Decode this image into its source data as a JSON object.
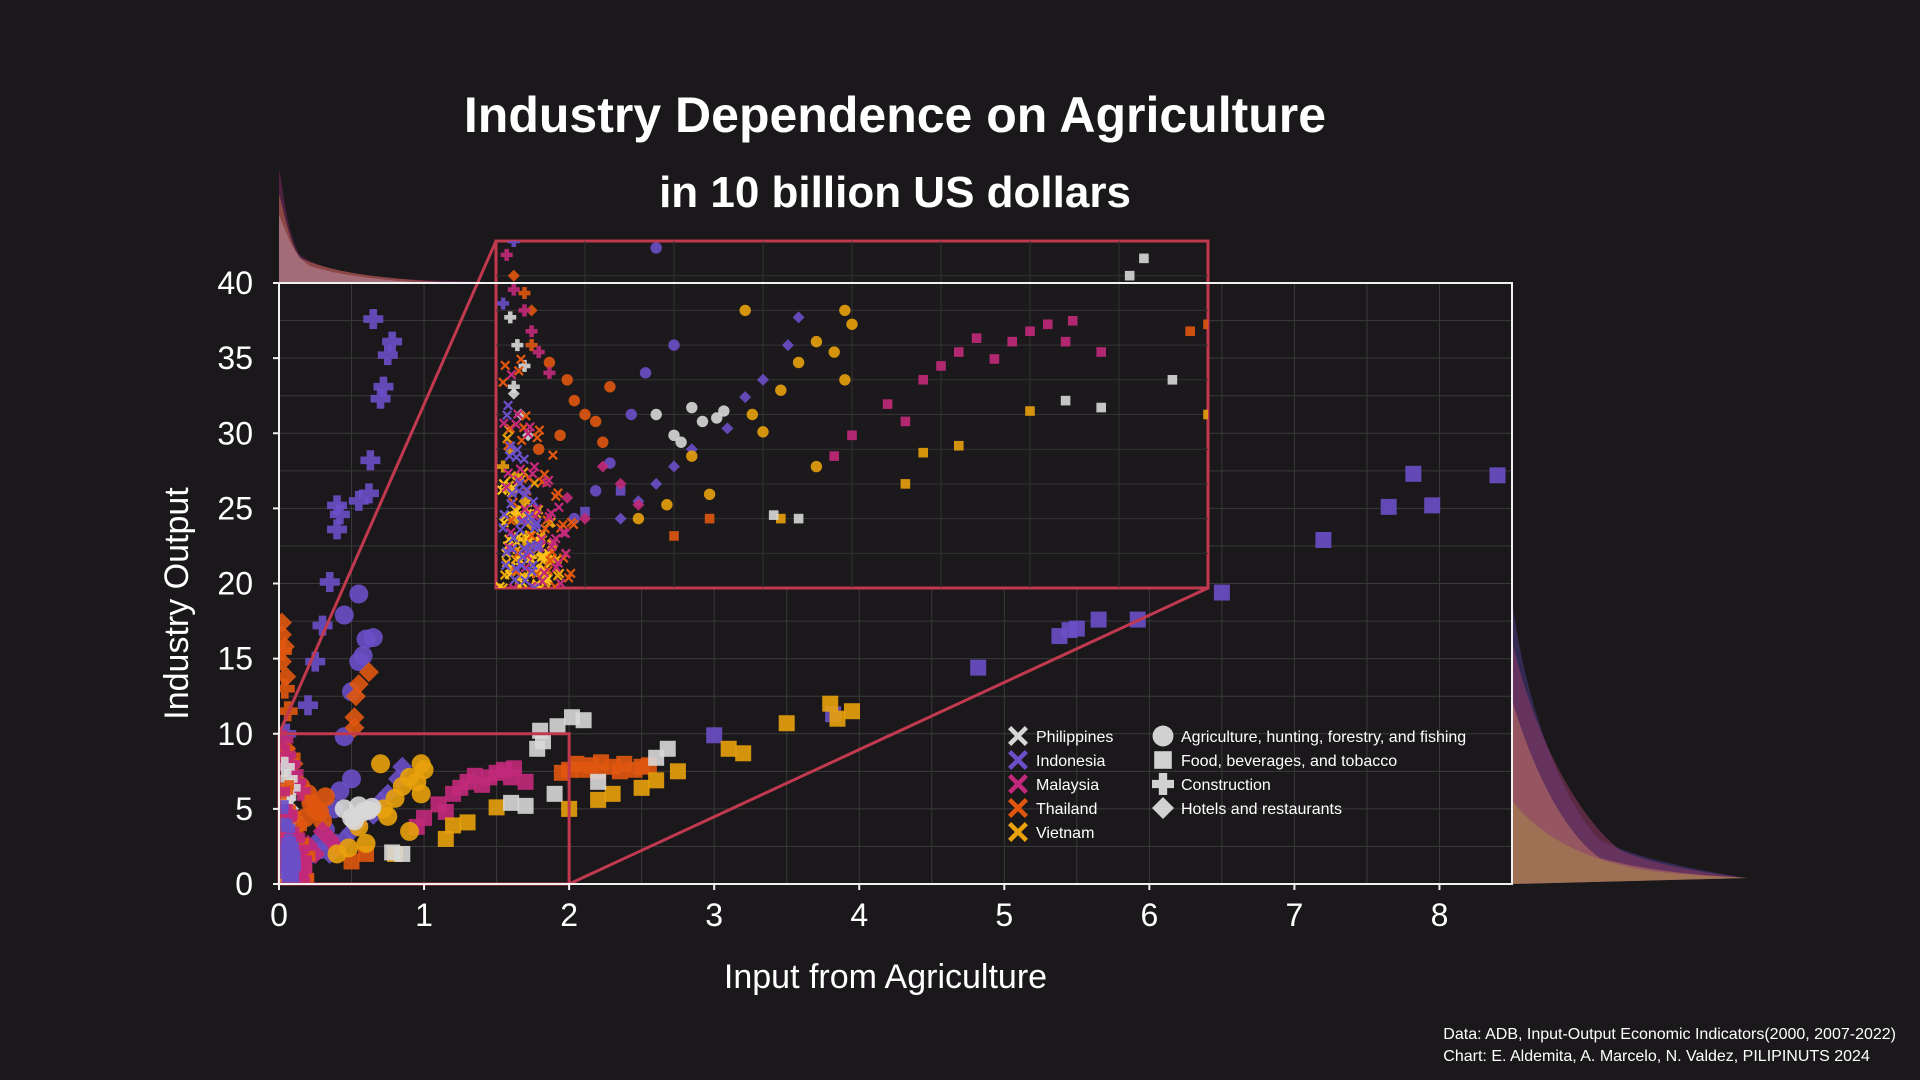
{
  "title": "Industry Dependence on Agriculture",
  "subtitle": "in 10 billion US dollars",
  "source": {
    "line1": "Data: ADB, Input-Output Economic Indicators(2000, 2007-2022)",
    "line2": "Chart: E. Aldemita, A. Marcelo, N. Valdez, PILIPINUTS 2024"
  },
  "chart_data": {
    "type": "scatter",
    "xlabel": "Input from Agriculture",
    "ylabel": "Industry Output",
    "xlim": [
      0,
      8.5
    ],
    "ylim": [
      0,
      40
    ],
    "x_ticks": [
      "0",
      "1",
      "2",
      "3",
      "4",
      "5",
      "6",
      "7",
      "8"
    ],
    "y_ticks": [
      "0",
      "5",
      "10",
      "15",
      "20",
      "25",
      "30",
      "35",
      "40"
    ],
    "grid": true,
    "zoom_inset": {
      "xlim": [
        0,
        2
      ],
      "ylim": [
        0,
        10
      ],
      "placement": "top-center"
    },
    "legend_placement": "lower-right",
    "country_legend": [
      {
        "name": "Philippines",
        "color": "#d8d8d8"
      },
      {
        "name": "Indonesia",
        "color": "#6a4fc8"
      },
      {
        "name": "Malaysia",
        "color": "#c2297a"
      },
      {
        "name": "Thailand",
        "color": "#e0560f"
      },
      {
        "name": "Vietnam",
        "color": "#e9a10c"
      }
    ],
    "sector_legend": [
      {
        "name": "Agriculture, hunting, forestry, and fishing",
        "marker": "circle"
      },
      {
        "name": "Food, beverages, and tobacco",
        "marker": "square"
      },
      {
        "name": "Construction",
        "marker": "plus"
      },
      {
        "name": "Hotels and restaurants",
        "marker": "diamond"
      }
    ],
    "colors": {
      "Philippines": "#d8d8d8",
      "Indonesia": "#6a4fc8",
      "Malaysia": "#c2297a",
      "Thailand": "#e0560f",
      "Vietnam": "#e9a10c"
    },
    "series": [
      {
        "country": "Indonesia",
        "sector": "Construction",
        "points": [
          [
            0.65,
            37.6
          ],
          [
            0.75,
            35.2
          ],
          [
            0.78,
            36.1
          ],
          [
            0.72,
            33.1
          ],
          [
            0.7,
            32.3
          ],
          [
            0.63,
            28.2
          ],
          [
            0.62,
            26.0
          ],
          [
            0.55,
            25.5
          ],
          [
            0.4,
            25.2
          ],
          [
            0.42,
            24.6
          ],
          [
            0.4,
            23.6
          ],
          [
            0.35,
            20.1
          ],
          [
            0.3,
            17.2
          ],
          [
            0.25,
            14.8
          ],
          [
            0.2,
            11.9
          ],
          [
            0.05,
            10.0
          ],
          [
            0.02,
            8.2
          ]
        ]
      },
      {
        "country": "Indonesia",
        "sector": "Agriculture, hunting, forestry, and fishing",
        "points": [
          [
            0.55,
            19.3
          ],
          [
            0.45,
            17.9
          ],
          [
            0.6,
            16.3
          ],
          [
            0.65,
            16.4
          ],
          [
            0.55,
            14.8
          ],
          [
            0.58,
            15.2
          ],
          [
            0.5,
            12.8
          ],
          [
            0.45,
            9.8
          ],
          [
            0.5,
            7.0
          ],
          [
            0.42,
            6.2
          ],
          [
            0.38,
            5.0
          ],
          [
            0.32,
            3.6
          ],
          [
            0.28,
            2.8
          ],
          [
            0.22,
            2.0
          ]
        ]
      },
      {
        "country": "Indonesia",
        "sector": "Food, beverages, and tobacco",
        "points": [
          [
            8.4,
            27.2
          ],
          [
            7.82,
            27.3
          ],
          [
            7.95,
            25.2
          ],
          [
            7.65,
            25.1
          ],
          [
            7.2,
            22.9
          ],
          [
            6.5,
            19.4
          ],
          [
            5.92,
            17.6
          ],
          [
            5.65,
            17.6
          ],
          [
            5.5,
            17.0
          ],
          [
            5.45,
            16.9
          ],
          [
            5.38,
            16.5
          ],
          [
            4.82,
            14.4
          ],
          [
            3.82,
            11.3
          ],
          [
            3.0,
            9.9
          ],
          [
            0.35,
            2.8
          ],
          [
            0.25,
            2.2
          ]
        ]
      },
      {
        "country": "Indonesia",
        "sector": "Hotels and restaurants",
        "points": [
          [
            0.85,
            7.8
          ],
          [
            0.82,
            7.0
          ],
          [
            0.75,
            6.0
          ],
          [
            0.7,
            5.5
          ],
          [
            0.65,
            4.6
          ],
          [
            0.55,
            4.0
          ],
          [
            0.5,
            3.5
          ],
          [
            0.45,
            3.0
          ],
          [
            0.4,
            2.5
          ],
          [
            0.35,
            2.0
          ]
        ]
      },
      {
        "country": "Thailand",
        "sector": "Food, beverages, and tobacco",
        "points": [
          [
            2.0,
            7.6
          ],
          [
            2.05,
            8.0
          ],
          [
            2.1,
            7.6
          ],
          [
            2.15,
            7.9
          ],
          [
            2.2,
            7.5
          ],
          [
            2.22,
            8.1
          ],
          [
            2.3,
            7.8
          ],
          [
            2.35,
            7.5
          ],
          [
            2.38,
            8.0
          ],
          [
            2.45,
            7.6
          ],
          [
            2.5,
            7.8
          ],
          [
            2.55,
            7.9
          ],
          [
            1.95,
            7.4
          ],
          [
            0.6,
            2.0
          ],
          [
            0.5,
            1.5
          ]
        ]
      },
      {
        "country": "Thailand",
        "sector": "Hotels and restaurants",
        "points": [
          [
            0.02,
            17.4
          ],
          [
            0.02,
            16.6
          ],
          [
            0.04,
            15.8
          ],
          [
            0.02,
            14.8
          ],
          [
            0.05,
            13.8
          ],
          [
            0.62,
            14.1
          ],
          [
            0.55,
            13.3
          ],
          [
            0.53,
            12.5
          ],
          [
            0.52,
            11.1
          ],
          [
            0.52,
            10.4
          ],
          [
            0.05,
            9.0
          ],
          [
            0.1,
            8.0
          ]
        ]
      },
      {
        "country": "Thailand",
        "sector": "Agriculture, hunting, forestry, and fishing",
        "points": [
          [
            0.15,
            6.5
          ],
          [
            0.2,
            6.0
          ],
          [
            0.22,
            5.4
          ],
          [
            0.25,
            5.0
          ],
          [
            0.28,
            4.8
          ],
          [
            0.18,
            4.4
          ],
          [
            0.12,
            4.0
          ],
          [
            0.3,
            4.2
          ],
          [
            0.32,
            5.8
          ]
        ]
      },
      {
        "country": "Thailand",
        "sector": "Construction",
        "points": [
          [
            0.02,
            15.5
          ],
          [
            0.04,
            13.0
          ],
          [
            0.06,
            11.5
          ],
          [
            0.08,
            8.5
          ],
          [
            0.1,
            7.0
          ]
        ]
      },
      {
        "country": "Malaysia",
        "sector": "Food, beverages, and tobacco",
        "points": [
          [
            1.45,
            7.1
          ],
          [
            1.5,
            7.4
          ],
          [
            1.55,
            7.6
          ],
          [
            1.6,
            7.1
          ],
          [
            1.62,
            7.7
          ],
          [
            1.7,
            6.8
          ],
          [
            1.4,
            6.6
          ],
          [
            1.2,
            6.0
          ],
          [
            1.25,
            6.4
          ],
          [
            1.3,
            6.8
          ],
          [
            1.35,
            7.2
          ],
          [
            1.1,
            5.3
          ],
          [
            1.15,
            4.8
          ],
          [
            1.0,
            4.4
          ],
          [
            0.95,
            3.8
          ]
        ]
      },
      {
        "country": "Malaysia",
        "sector": "Construction",
        "points": [
          [
            0.03,
            9.6
          ],
          [
            0.05,
            8.6
          ],
          [
            0.08,
            8.0
          ],
          [
            0.1,
            7.4
          ],
          [
            0.12,
            6.8
          ],
          [
            0.15,
            6.2
          ]
        ]
      },
      {
        "country": "Malaysia",
        "sector": "Hotels and restaurants",
        "points": [
          [
            0.3,
            3.5
          ],
          [
            0.35,
            3.0
          ],
          [
            0.4,
            2.4
          ],
          [
            0.25,
            2.0
          ],
          [
            0.2,
            2.6
          ]
        ]
      },
      {
        "country": "Vietnam",
        "sector": "Food, beverages, and tobacco",
        "points": [
          [
            3.8,
            12.0
          ],
          [
            3.95,
            11.5
          ],
          [
            3.85,
            11.0
          ],
          [
            3.5,
            10.7
          ],
          [
            3.1,
            9.0
          ],
          [
            3.2,
            8.7
          ],
          [
            2.75,
            7.5
          ],
          [
            2.6,
            6.9
          ],
          [
            2.5,
            6.4
          ],
          [
            2.3,
            6.0
          ],
          [
            2.2,
            5.6
          ],
          [
            2.0,
            5.0
          ],
          [
            1.5,
            5.1
          ],
          [
            1.3,
            4.1
          ],
          [
            1.2,
            3.9
          ],
          [
            1.15,
            3.0
          ],
          [
            0.8,
            2.0
          ]
        ]
      },
      {
        "country": "Vietnam",
        "sector": "Agriculture, hunting, forestry, and fishing",
        "points": [
          [
            0.7,
            8.0
          ],
          [
            0.98,
            8.0
          ],
          [
            1.0,
            7.6
          ],
          [
            0.95,
            6.8
          ],
          [
            0.9,
            7.1
          ],
          [
            0.85,
            6.5
          ],
          [
            0.98,
            6.0
          ],
          [
            0.8,
            5.7
          ],
          [
            0.72,
            5.0
          ],
          [
            0.75,
            4.5
          ],
          [
            0.9,
            3.5
          ],
          [
            0.55,
            3.8
          ],
          [
            0.6,
            2.7
          ],
          [
            0.48,
            2.4
          ],
          [
            0.4,
            2.0
          ]
        ]
      },
      {
        "country": "Vietnam",
        "sector": "Hotels and restaurants",
        "points": [
          [
            0.04,
            4.0
          ],
          [
            0.06,
            3.2
          ],
          [
            0.08,
            2.5
          ],
          [
            0.1,
            1.8
          ],
          [
            0.12,
            1.2
          ],
          [
            0.15,
            0.8
          ],
          [
            0.05,
            0.5
          ]
        ]
      },
      {
        "country": "Vietnam",
        "sector": "Construction",
        "points": [
          [
            0.02,
            3.5
          ],
          [
            0.04,
            2.8
          ],
          [
            0.06,
            2.0
          ],
          [
            0.08,
            1.4
          ],
          [
            0.1,
            0.9
          ],
          [
            0.12,
            0.5
          ]
        ]
      },
      {
        "country": "Philippines",
        "sector": "Food, beverages, and tobacco",
        "points": [
          [
            2.02,
            11.1
          ],
          [
            2.1,
            10.9
          ],
          [
            1.92,
            10.5
          ],
          [
            1.8,
            10.2
          ],
          [
            1.82,
            9.5
          ],
          [
            1.78,
            9.0
          ],
          [
            2.68,
            9.0
          ],
          [
            2.6,
            8.4
          ],
          [
            2.2,
            6.8
          ],
          [
            1.9,
            6.0
          ],
          [
            1.7,
            5.2
          ],
          [
            1.6,
            5.4
          ],
          [
            0.85,
            2.0
          ],
          [
            0.78,
            2.1
          ]
        ]
      },
      {
        "country": "Philippines",
        "sector": "Agriculture, hunting, forestry, and fishing",
        "points": [
          [
            0.45,
            5.0
          ],
          [
            0.5,
            4.4
          ],
          [
            0.62,
            4.9
          ],
          [
            0.64,
            5.1
          ],
          [
            0.58,
            4.8
          ],
          [
            0.52,
            4.2
          ],
          [
            0.55,
            5.2
          ]
        ]
      },
      {
        "country": "Philippines",
        "sector": "Construction",
        "points": [
          [
            0.04,
            7.8
          ],
          [
            0.06,
            7.0
          ],
          [
            0.08,
            6.4
          ],
          [
            0.05,
            5.8
          ]
        ]
      },
      {
        "country": "Philippines",
        "sector": "Hotels and restaurants",
        "points": [
          [
            0.05,
            5.6
          ],
          [
            0.07,
            5.0
          ],
          [
            0.09,
            4.4
          ]
        ]
      }
    ]
  }
}
